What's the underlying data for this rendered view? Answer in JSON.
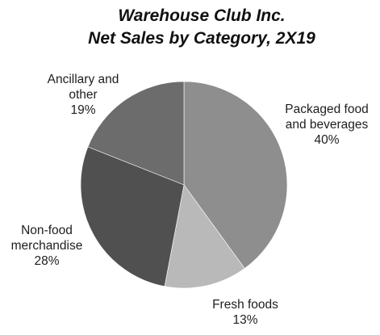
{
  "chart_data": {
    "type": "pie",
    "title": "Warehouse Club Inc.",
    "subtitle": "Net Sales by Category, 2X19",
    "slices": [
      {
        "label_lines": [
          "Packaged food",
          "and beverages"
        ],
        "value_text": "40%",
        "value": 40,
        "color": "#8e8e8e"
      },
      {
        "label_lines": [
          "Fresh foods"
        ],
        "value_text": "13%",
        "value": 13,
        "color": "#b9b9b9"
      },
      {
        "label_lines": [
          "Non-food",
          "merchandise"
        ],
        "value_text": "28%",
        "value": 28,
        "color": "#505050"
      },
      {
        "label_lines": [
          "Ancillary and",
          "other"
        ],
        "value_text": "19%",
        "value": 19,
        "color": "#6c6c6c"
      }
    ],
    "start": "top",
    "direction": "clockwise",
    "legend": "none"
  }
}
